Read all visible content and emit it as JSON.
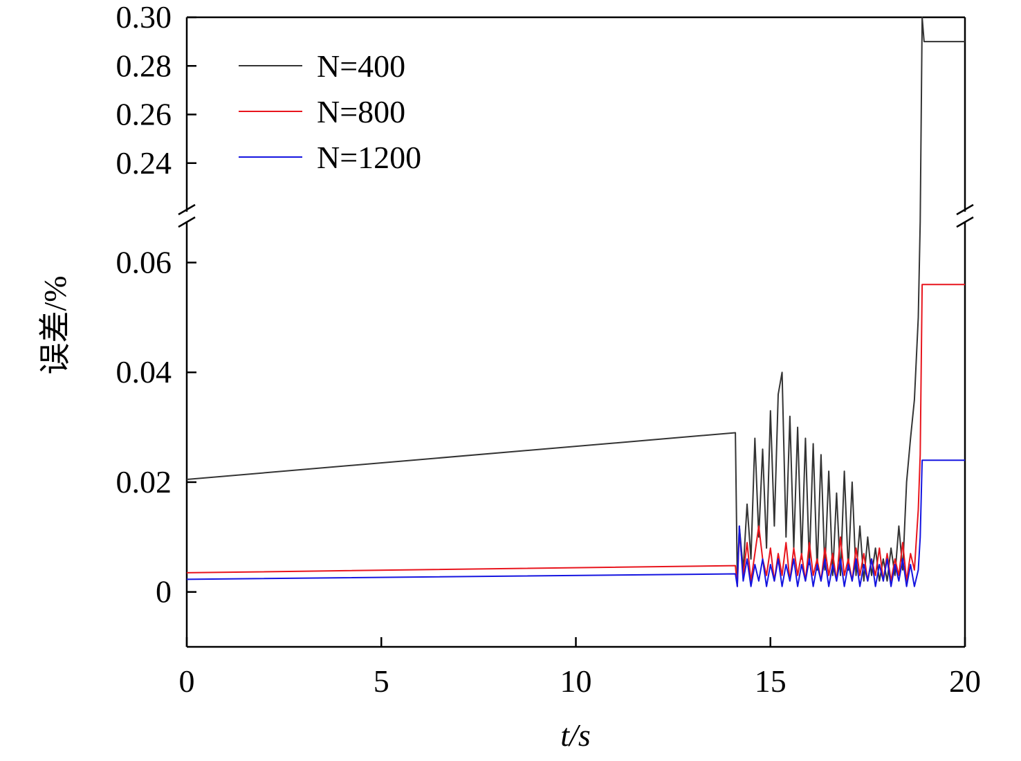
{
  "chart_data": {
    "type": "line",
    "x_label": "t/s",
    "y_label": "误差/%",
    "xlim": [
      0,
      20
    ],
    "xticks": [
      0,
      5,
      10,
      15,
      20
    ],
    "y_segments": [
      {
        "ylim": [
          0.22,
          0.3
        ],
        "yticks": [
          0.24,
          0.26,
          0.28,
          {
            "value": 0.3,
            "label": "0.30"
          }
        ]
      },
      {
        "ylim": [
          -0.01,
          0.0675
        ],
        "yticks": [
          0,
          0.02,
          0.04,
          0.06
        ]
      }
    ],
    "legend": "upper left",
    "x": [
      0,
      14.1,
      14.15,
      14.2,
      14.3,
      14.4,
      14.5,
      14.6,
      14.7,
      14.8,
      14.9,
      15.0,
      15.1,
      15.2,
      15.3,
      15.4,
      15.5,
      15.6,
      15.7,
      15.8,
      15.9,
      16.0,
      16.1,
      16.2,
      16.3,
      16.4,
      16.5,
      16.6,
      16.7,
      16.8,
      16.9,
      17.0,
      17.1,
      17.2,
      17.3,
      17.4,
      17.5,
      17.6,
      17.7,
      17.8,
      17.9,
      18.0,
      18.1,
      18.2,
      18.3,
      18.4,
      18.5,
      18.6,
      18.7,
      18.8,
      18.85,
      18.9,
      18.95,
      20
    ],
    "series": [
      {
        "name": "N=400",
        "color": "#333333",
        "values": [
          0.0205,
          0.029,
          0.002,
          0.012,
          0.004,
          0.016,
          0.006,
          0.028,
          0.01,
          0.026,
          0.008,
          0.033,
          0.012,
          0.036,
          0.04,
          0.01,
          0.032,
          0.008,
          0.03,
          0.006,
          0.028,
          0.005,
          0.027,
          0.004,
          0.025,
          0.004,
          0.022,
          0.003,
          0.018,
          0.003,
          0.022,
          0.004,
          0.02,
          0.003,
          0.012,
          0.002,
          0.01,
          0.003,
          0.008,
          0.002,
          0.006,
          0.002,
          0.008,
          0.003,
          0.012,
          0.004,
          0.02,
          0.028,
          0.035,
          0.05,
          0.068,
          0.3,
          0.29,
          0.29
        ]
      },
      {
        "name": "N=800",
        "color": "#e8141c",
        "values": [
          0.0035,
          0.0048,
          0.001,
          0.011,
          0.003,
          0.009,
          0.002,
          0.007,
          0.012,
          0.006,
          0.003,
          0.008,
          0.002,
          0.007,
          0.003,
          0.009,
          0.002,
          0.008,
          0.003,
          0.007,
          0.002,
          0.009,
          0.003,
          0.006,
          0.002,
          0.008,
          0.003,
          0.007,
          0.002,
          0.01,
          0.003,
          0.006,
          0.002,
          0.008,
          0.003,
          0.007,
          0.002,
          0.006,
          0.003,
          0.008,
          0.002,
          0.007,
          0.002,
          0.006,
          0.003,
          0.009,
          0.002,
          0.007,
          0.004,
          0.015,
          0.025,
          0.056,
          0.056,
          0.056
        ]
      },
      {
        "name": "N=1200",
        "color": "#1414e0",
        "values": [
          0.0023,
          0.0033,
          0.001,
          0.012,
          0.002,
          0.006,
          0.001,
          0.005,
          0.002,
          0.006,
          0.001,
          0.005,
          0.002,
          0.006,
          0.001,
          0.005,
          0.002,
          0.006,
          0.001,
          0.005,
          0.002,
          0.006,
          0.001,
          0.005,
          0.002,
          0.006,
          0.001,
          0.005,
          0.002,
          0.006,
          0.001,
          0.005,
          0.002,
          0.006,
          0.001,
          0.005,
          0.002,
          0.006,
          0.001,
          0.005,
          0.002,
          0.006,
          0.001,
          0.005,
          0.002,
          0.006,
          0.001,
          0.005,
          0.001,
          0.004,
          0.01,
          0.024,
          0.024,
          0.024
        ]
      }
    ]
  }
}
